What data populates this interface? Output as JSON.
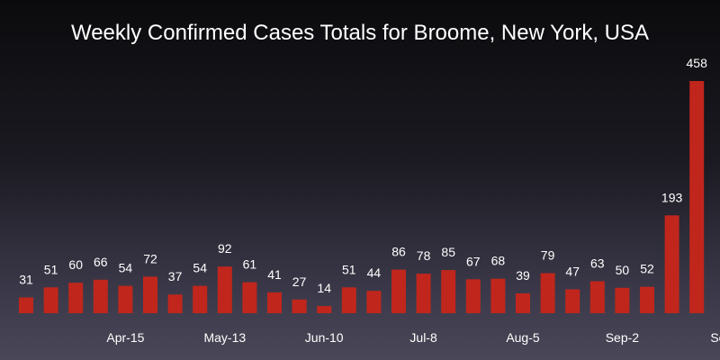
{
  "chart_data": {
    "type": "bar",
    "title": "Weekly Confirmed Cases Totals for Broome, New York, USA",
    "xlabel": "",
    "ylabel": "",
    "values": [
      31,
      51,
      60,
      66,
      54,
      72,
      37,
      54,
      92,
      61,
      41,
      27,
      14,
      51,
      44,
      86,
      78,
      85,
      67,
      68,
      39,
      79,
      47,
      63,
      50,
      52,
      193,
      458
    ],
    "tick_labels": [
      {
        "index": 4,
        "label": "Apr-15"
      },
      {
        "index": 8,
        "label": "May-13"
      },
      {
        "index": 12,
        "label": "Jun-10"
      },
      {
        "index": 16,
        "label": "Jul-8"
      },
      {
        "index": 20,
        "label": "Aug-5"
      },
      {
        "index": 24,
        "label": "Sep-2"
      },
      {
        "index": 28,
        "label": "Sep"
      }
    ],
    "ylim": [
      0,
      458
    ],
    "grid": false,
    "bar_color": "#c0261c",
    "text_color": "#ffffff"
  }
}
